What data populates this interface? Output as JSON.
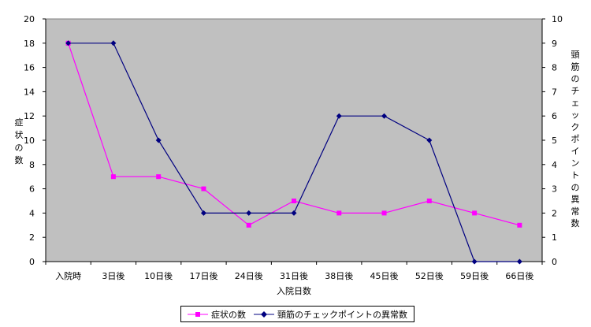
{
  "chart_data": {
    "type": "line",
    "categories": [
      "入院時",
      "3日後",
      "10日後",
      "17日後",
      "24日後",
      "31日後",
      "38日後",
      "45日後",
      "52日後",
      "59日後",
      "66日後"
    ],
    "series": [
      {
        "name": "症状の数",
        "axis": "left",
        "color": "#ff00ff",
        "marker": "square",
        "values": [
          18,
          7,
          7,
          6,
          3,
          5,
          4,
          4,
          5,
          4,
          3
        ]
      },
      {
        "name": "頸筋のチェックポイントの異常数",
        "axis": "right",
        "color": "#000080",
        "marker": "diamond",
        "values": [
          9,
          9,
          5,
          2,
          2,
          2,
          6,
          6,
          5,
          0,
          0
        ]
      }
    ],
    "xlabel": "入院日数",
    "ylabel": "症状の数",
    "y2label": "頸筋のチェックポイントの異常数",
    "ylim": [
      0,
      20
    ],
    "y2lim": [
      0,
      10
    ],
    "yticks": [
      0,
      2,
      4,
      6,
      8,
      10,
      12,
      14,
      16,
      18,
      20
    ],
    "y2ticks": [
      0,
      1,
      2,
      3,
      4,
      5,
      6,
      7,
      8,
      9,
      10
    ],
    "plot_background": "#c0c0c0",
    "grid": false,
    "legend_position": "bottom"
  }
}
